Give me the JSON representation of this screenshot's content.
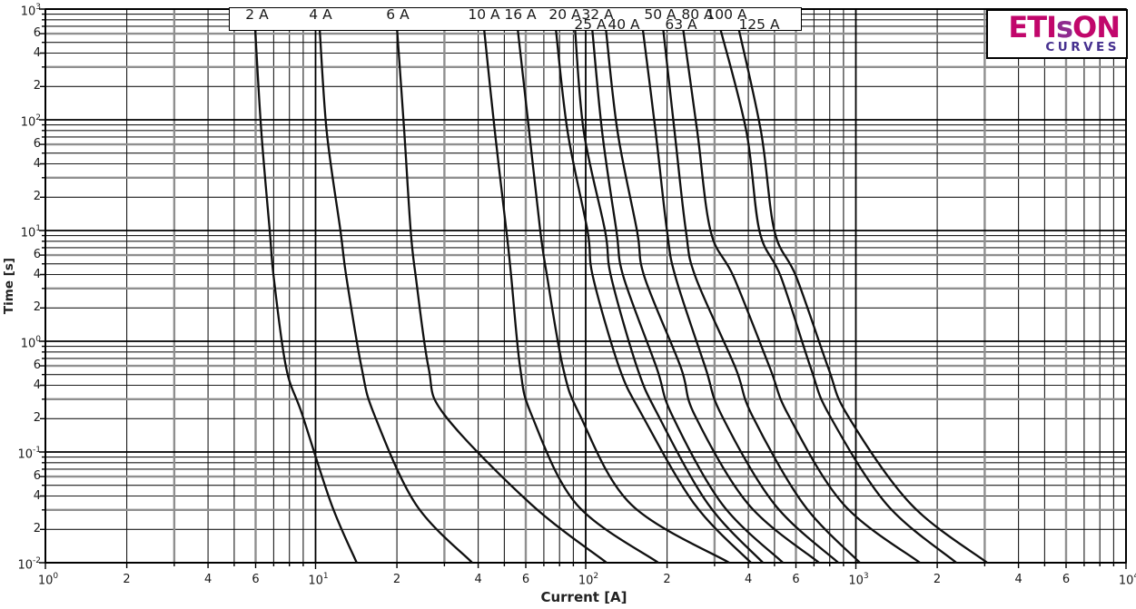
{
  "page": {
    "background": "#ffffff"
  },
  "logo": {
    "main_left": "ETI",
    "main_mid": "s",
    "main_right": "ON",
    "sub": "CURVES",
    "main_color": "#c1066b",
    "s_color": "#8e2a8e",
    "sub_color": "#46308f"
  },
  "chart_data": {
    "type": "line",
    "xlabel": "Current [A]",
    "ylabel": "Time [s]",
    "x_axis": {
      "scale": "log",
      "min": 1,
      "max": 10000,
      "min_exp": 0,
      "max_exp": 4,
      "labeled_minors": [
        2,
        4,
        6
      ]
    },
    "y_axis": {
      "scale": "log",
      "min": 0.01,
      "max": 1000,
      "min_exp": -2,
      "max_exp": 3,
      "labeled_minors": [
        2,
        4,
        6
      ]
    },
    "grid": {
      "on": true,
      "emphasized_minors": [
        3,
        6
      ]
    },
    "legend_position": "top-inside-box",
    "colors": {
      "curve": "#101010",
      "grid_minor": "#1c1c1c",
      "grid_emphasis": "#8f8f8f",
      "grid_major": "#000000",
      "frame": "#000000",
      "text": "#1a1a1a"
    },
    "series": [
      {
        "name": "2 A",
        "rating": 2,
        "label_row": 1,
        "label_x": 283,
        "points": [
          [
            5.97,
            685
          ],
          [
            6.3,
            78
          ],
          [
            6.77,
            9.85
          ],
          [
            7.0,
            3.81
          ],
          [
            7.78,
            0.578
          ],
          [
            8.93,
            0.217
          ],
          [
            11.45,
            0.0337
          ],
          [
            14.2,
            0.01
          ]
        ]
      },
      {
        "name": "4 A",
        "rating": 4,
        "label_row": 1,
        "label_x": 353,
        "points": [
          [
            10.35,
            685
          ],
          [
            11.0,
            78
          ],
          [
            12.37,
            9.85
          ],
          [
            13.0,
            3.81
          ],
          [
            14.8,
            0.578
          ],
          [
            16.5,
            0.217
          ],
          [
            23.5,
            0.0337
          ],
          [
            38.0,
            0.01
          ]
        ]
      },
      {
        "name": "6 A",
        "rating": 6,
        "label_row": 1,
        "label_x": 438,
        "points": [
          [
            20.0,
            685
          ],
          [
            21.3,
            78
          ],
          [
            22.5,
            9.85
          ],
          [
            23.5,
            3.81
          ],
          [
            26.2,
            0.578
          ],
          [
            30.0,
            0.217
          ],
          [
            62.8,
            0.0337
          ],
          [
            119.5,
            0.01
          ]
        ]
      },
      {
        "name": "10 A",
        "rating": 10,
        "label_row": 1,
        "label_x": 533,
        "points": [
          [
            42.0,
            685
          ],
          [
            46.1,
            78
          ],
          [
            50.9,
            9.85
          ],
          [
            53.0,
            3.81
          ],
          [
            57.2,
            0.578
          ],
          [
            63.0,
            0.217
          ],
          [
            92.5,
            0.0337
          ],
          [
            185.8,
            0.01
          ]
        ]
      },
      {
        "name": "16 A",
        "rating": 16,
        "label_row": 1,
        "label_x": 573,
        "points": [
          [
            55.9,
            685
          ],
          [
            61.8,
            78
          ],
          [
            67.9,
            9.85
          ],
          [
            72.0,
            3.81
          ],
          [
            82.4,
            0.578
          ],
          [
            95.0,
            0.217
          ],
          [
            147.0,
            0.0337
          ],
          [
            340.0,
            0.01
          ]
        ]
      },
      {
        "name": "20 A",
        "rating": 20,
        "label_row": 1,
        "label_x": 622,
        "points": [
          [
            77.4,
            685
          ],
          [
            85.7,
            78
          ],
          [
            101.6,
            9.85
          ],
          [
            106.4,
            3.81
          ],
          [
            133.1,
            0.578
          ],
          [
            161.5,
            0.217
          ],
          [
            253.0,
            0.0337
          ],
          [
            409.0,
            0.01
          ]
        ]
      },
      {
        "name": "25 A",
        "rating": 25,
        "label_row": 2,
        "label_x": 650,
        "points": [
          [
            91.2,
            685
          ],
          [
            98.4,
            78
          ],
          [
            118.0,
            9.85
          ],
          [
            124.2,
            3.81
          ],
          [
            155.0,
            0.578
          ],
          [
            185.0,
            0.217
          ],
          [
            284.0,
            0.0337
          ],
          [
            453.0,
            0.01
          ]
        ]
      },
      {
        "name": "32 A",
        "rating": 32,
        "label_row": 1,
        "label_x": 658,
        "points": [
          [
            105.6,
            685
          ],
          [
            115.0,
            78
          ],
          [
            130.0,
            9.85
          ],
          [
            138.0,
            3.81
          ],
          [
            182.9,
            0.578
          ],
          [
            208.4,
            0.217
          ],
          [
            320.0,
            0.0337
          ],
          [
            537.0,
            0.01
          ]
        ]
      },
      {
        "name": "40 A",
        "rating": 40,
        "label_row": 2,
        "label_x": 687,
        "points": [
          [
            118.6,
            685
          ],
          [
            131.2,
            78
          ],
          [
            155.0,
            9.85
          ],
          [
            165.0,
            3.81
          ],
          [
            225.0,
            0.578
          ],
          [
            253.0,
            0.217
          ],
          [
            400.0,
            0.0337
          ],
          [
            731.0,
            0.01
          ]
        ]
      },
      {
        "name": "50 A",
        "rating": 50,
        "label_row": 1,
        "label_x": 727,
        "points": [
          [
            162.4,
            685
          ],
          [
            181.5,
            78
          ],
          [
            200.0,
            9.85
          ],
          [
            215.0,
            3.81
          ],
          [
            277.4,
            0.578
          ],
          [
            317.7,
            0.217
          ],
          [
            500.0,
            0.0337
          ],
          [
            861.0,
            0.01
          ]
        ]
      },
      {
        "name": "63 A",
        "rating": 63,
        "label_row": 2,
        "label_x": 750,
        "points": [
          [
            193.2,
            685
          ],
          [
            213.3,
            78
          ],
          [
            235.0,
            9.85
          ],
          [
            255.0,
            3.81
          ],
          [
            358.0,
            0.578
          ],
          [
            412.0,
            0.217
          ],
          [
            640.0,
            0.0337
          ],
          [
            1035.0,
            0.01
          ]
        ]
      },
      {
        "name": "80 A",
        "rating": 80,
        "label_row": 1,
        "label_x": 768,
        "points": [
          [
            228.9,
            685
          ],
          [
            258.9,
            78
          ],
          [
            290.0,
            9.85
          ],
          [
            353.0,
            3.81
          ],
          [
            480.0,
            0.578
          ],
          [
            562.0,
            0.217
          ],
          [
            900.0,
            0.0337
          ],
          [
            1726.0,
            0.01
          ]
        ]
      },
      {
        "name": "100 A",
        "rating": 100,
        "label_row": 1,
        "label_x": 800,
        "points": [
          [
            314.0,
            685
          ],
          [
            393.6,
            78
          ],
          [
            440.0,
            9.85
          ],
          [
            528.0,
            3.81
          ],
          [
            680.0,
            0.578
          ],
          [
            797.0,
            0.217
          ],
          [
            1300.0,
            0.0337
          ],
          [
            2355.0,
            0.01
          ]
        ]
      },
      {
        "name": "125 A",
        "rating": 125,
        "label_row": 2,
        "label_x": 836,
        "points": [
          [
            367.3,
            685
          ],
          [
            445.7,
            78
          ],
          [
            500.0,
            9.85
          ],
          [
            602.0,
            3.81
          ],
          [
            790.0,
            0.578
          ],
          [
            929.0,
            0.217
          ],
          [
            1600.0,
            0.0337
          ],
          [
            3063.0,
            0.01
          ]
        ]
      }
    ]
  }
}
